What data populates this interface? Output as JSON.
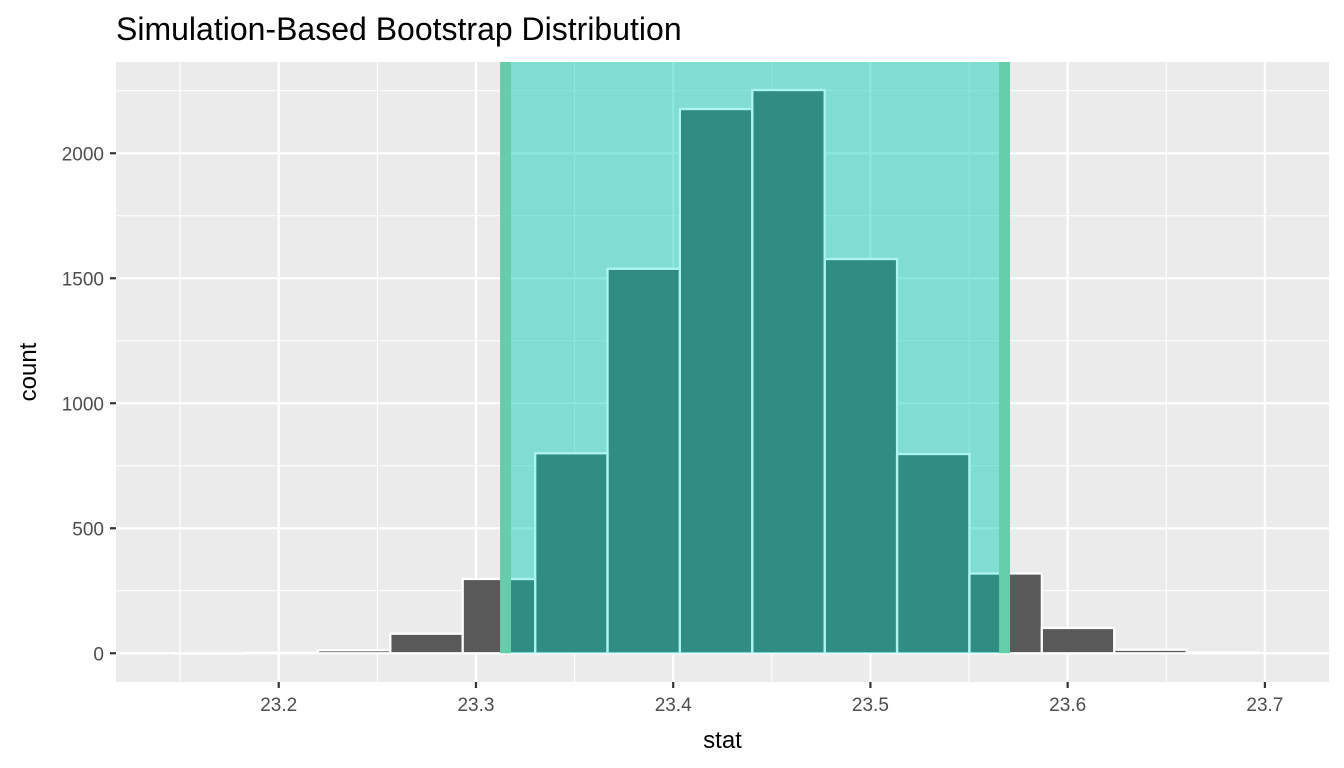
{
  "chart_data": {
    "type": "bar",
    "title": "Simulation-Based Bootstrap Distribution",
    "xlabel": "stat",
    "ylabel": "count",
    "xlim": [
      23.1175,
      23.7325
    ],
    "ylim": [
      -115,
      2365
    ],
    "x_ticks": [
      "23.2",
      "23.3",
      "23.4",
      "23.5",
      "23.6",
      "23.7"
    ],
    "y_ticks": [
      "0",
      "500",
      "1000",
      "1500",
      "2000"
    ],
    "x_tick_values": [
      23.2,
      23.3,
      23.4,
      23.5,
      23.6,
      23.7
    ],
    "y_tick_values": [
      0,
      500,
      1000,
      1500,
      2000
    ],
    "x_minor_breaks": [
      23.15,
      23.25,
      23.35,
      23.45,
      23.55,
      23.65
    ],
    "y_minor_breaks": [
      250,
      750,
      1250,
      1750,
      2250
    ],
    "grid": true,
    "bin_width": 0.0367,
    "bins": [
      {
        "left": 23.1465,
        "right": 23.1832,
        "count": 0
      },
      {
        "left": 23.1832,
        "right": 23.2199,
        "count": 2
      },
      {
        "left": 23.2199,
        "right": 23.2566,
        "count": 12
      },
      {
        "left": 23.2566,
        "right": 23.2933,
        "count": 78
      },
      {
        "left": 23.2933,
        "right": 23.33,
        "count": 297
      },
      {
        "left": 23.33,
        "right": 23.3667,
        "count": 800
      },
      {
        "left": 23.3667,
        "right": 23.4034,
        "count": 1538
      },
      {
        "left": 23.4034,
        "right": 23.4401,
        "count": 2177
      },
      {
        "left": 23.4401,
        "right": 23.4768,
        "count": 2253
      },
      {
        "left": 23.4768,
        "right": 23.5135,
        "count": 1577
      },
      {
        "left": 23.5135,
        "right": 23.5502,
        "count": 797
      },
      {
        "left": 23.5502,
        "right": 23.5869,
        "count": 319
      },
      {
        "left": 23.5869,
        "right": 23.6236,
        "count": 101
      },
      {
        "left": 23.6236,
        "right": 23.6603,
        "count": 14
      },
      {
        "left": 23.6603,
        "right": 23.697,
        "count": 3
      }
    ],
    "ci": {
      "lower": 23.315,
      "upper": 23.568
    },
    "colors": {
      "panel": "#ebebeb",
      "grid": "#ffffff",
      "bar_fill": "#595959",
      "bar_outline": "#ffffff",
      "ci_fill": "#00c9b6",
      "ci_fill_opacity": 0.45,
      "ci_line": "#66cdaa",
      "inside_outline": "#aaf5ee"
    }
  }
}
